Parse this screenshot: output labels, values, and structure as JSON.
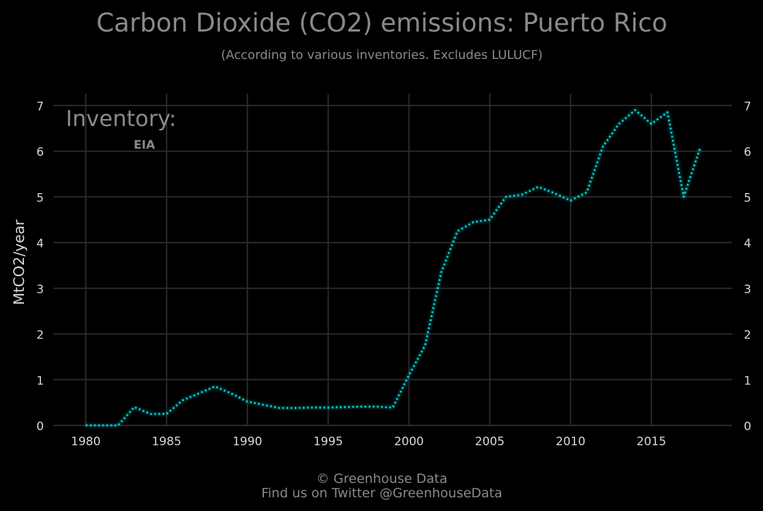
{
  "chart_data": {
    "type": "line",
    "title": "Carbon Dioxide (CO2) emissions: Puerto Rico",
    "subtitle": "(According to various inventories. Excludes LULUCF)",
    "xlabel": "",
    "ylabel": "MtCO2/year",
    "xlim": [
      1978,
      2020
    ],
    "ylim": [
      0,
      7
    ],
    "x_ticks": [
      1980,
      1985,
      1990,
      1995,
      2000,
      2005,
      2010,
      2015
    ],
    "y_ticks": [
      0,
      1,
      2,
      3,
      4,
      5,
      6,
      7
    ],
    "grid": true,
    "legend": {
      "title": "Inventory:",
      "position": "top-left"
    },
    "series": [
      {
        "name": "EIA",
        "color": "#00d0d0",
        "line_style": "dotted",
        "x": [
          1980,
          1981,
          1982,
          1983,
          1984,
          1985,
          1986,
          1987,
          1988,
          1989,
          1990,
          1991,
          1992,
          1993,
          1994,
          1995,
          1996,
          1997,
          1998,
          1999,
          2000,
          2001,
          2002,
          2003,
          2004,
          2005,
          2006,
          2007,
          2008,
          2009,
          2010,
          2011,
          2012,
          2013,
          2014,
          2015,
          2016,
          2017,
          2018
        ],
        "values": [
          0.0,
          0.0,
          0.0,
          0.4,
          0.25,
          0.25,
          0.55,
          0.7,
          0.85,
          0.7,
          0.52,
          0.45,
          0.38,
          0.38,
          0.39,
          0.39,
          0.4,
          0.41,
          0.41,
          0.39,
          1.1,
          1.75,
          3.35,
          4.25,
          4.45,
          4.5,
          5.0,
          5.05,
          5.22,
          5.08,
          4.92,
          5.1,
          6.1,
          6.6,
          6.9,
          6.6,
          6.85,
          5.0,
          6.05
        ]
      }
    ]
  },
  "footer": {
    "line1": "© Greenhouse Data",
    "line2": "Find us on Twitter @GreenhouseData"
  },
  "colors": {
    "background": "#000000",
    "grid": "#2a2a2a",
    "title": "#8a8a8a",
    "tick": "#d8d8d8",
    "series": "#00d0d0"
  }
}
